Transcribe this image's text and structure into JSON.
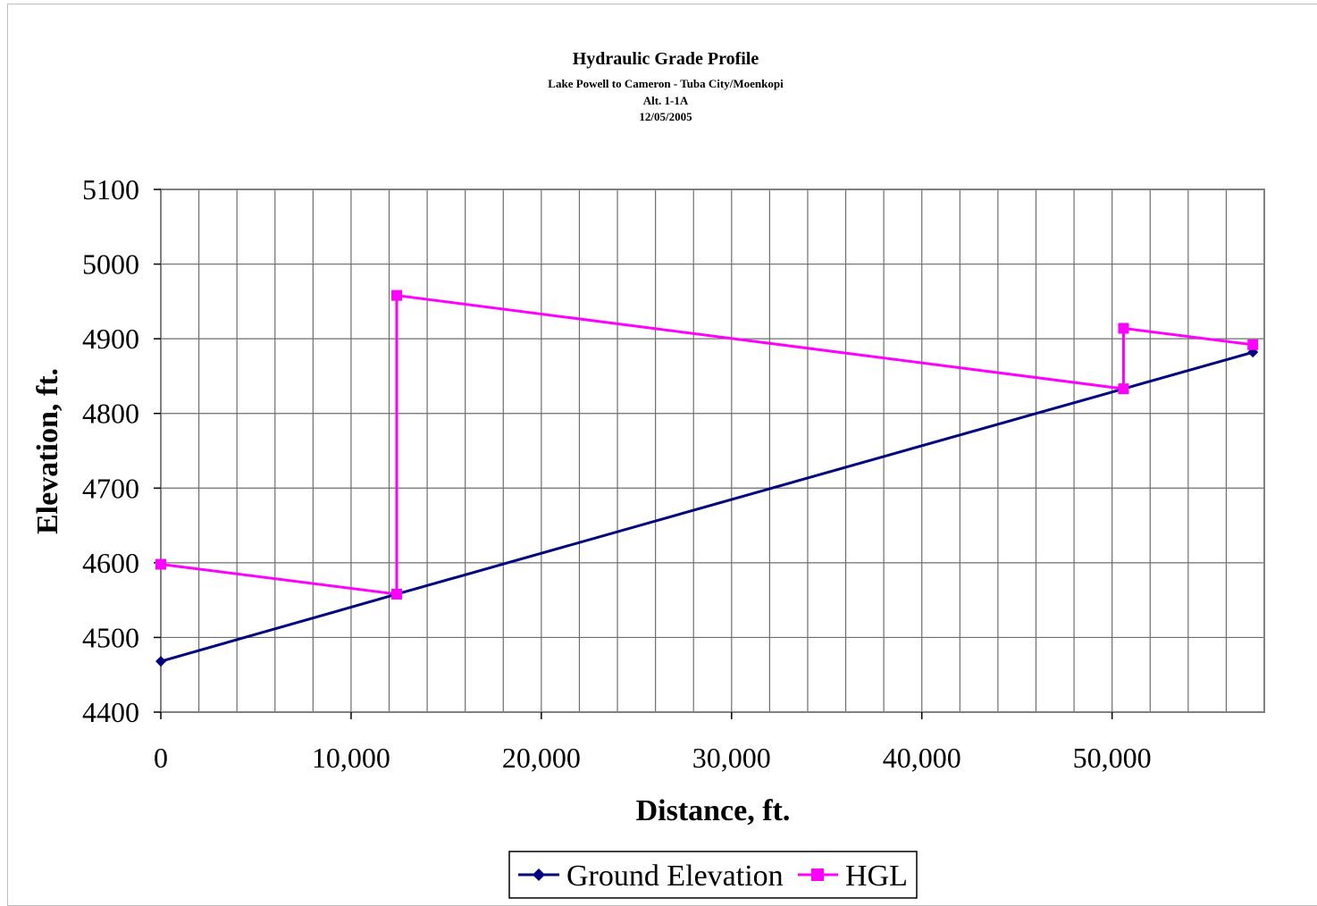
{
  "chart_data": {
    "type": "line",
    "title": "Hydraulic Grade Profile",
    "subtitle_lines": [
      "Lake Powell to Cameron - Tuba City/Moenkopi",
      "Alt. 1-1A",
      "12/05/2005"
    ],
    "xlabel": "Distance, ft.",
    "ylabel": "Elevation, ft.",
    "xlim": [
      0,
      58000
    ],
    "ylim": [
      4400,
      5100
    ],
    "x_ticks": [
      0,
      10000,
      20000,
      30000,
      40000,
      50000
    ],
    "x_tick_labels": [
      "0",
      "10,000",
      "20,000",
      "30,000",
      "40,000",
      "50,000"
    ],
    "x_grid_step": 2000,
    "y_ticks": [
      4400,
      4500,
      4600,
      4700,
      4800,
      4900,
      5000,
      5100
    ],
    "y_tick_labels": [
      "4400",
      "4500",
      "4600",
      "4700",
      "4800",
      "4900",
      "5000",
      "5100"
    ],
    "grid": true,
    "legend_position": "bottom",
    "series": [
      {
        "name": "Ground Elevation",
        "color": "#000080",
        "marker": "diamond",
        "points": [
          [
            0,
            4468
          ],
          [
            12400,
            4558
          ],
          [
            50600,
            4833
          ],
          [
            57400,
            4882
          ]
        ]
      },
      {
        "name": "HGL",
        "color": "#ff00ff",
        "marker": "square",
        "points": [
          [
            0,
            4598
          ],
          [
            12400,
            4558
          ],
          [
            12400,
            4958
          ],
          [
            50600,
            4833
          ],
          [
            50600,
            4914
          ],
          [
            57400,
            4892
          ]
        ]
      }
    ]
  }
}
